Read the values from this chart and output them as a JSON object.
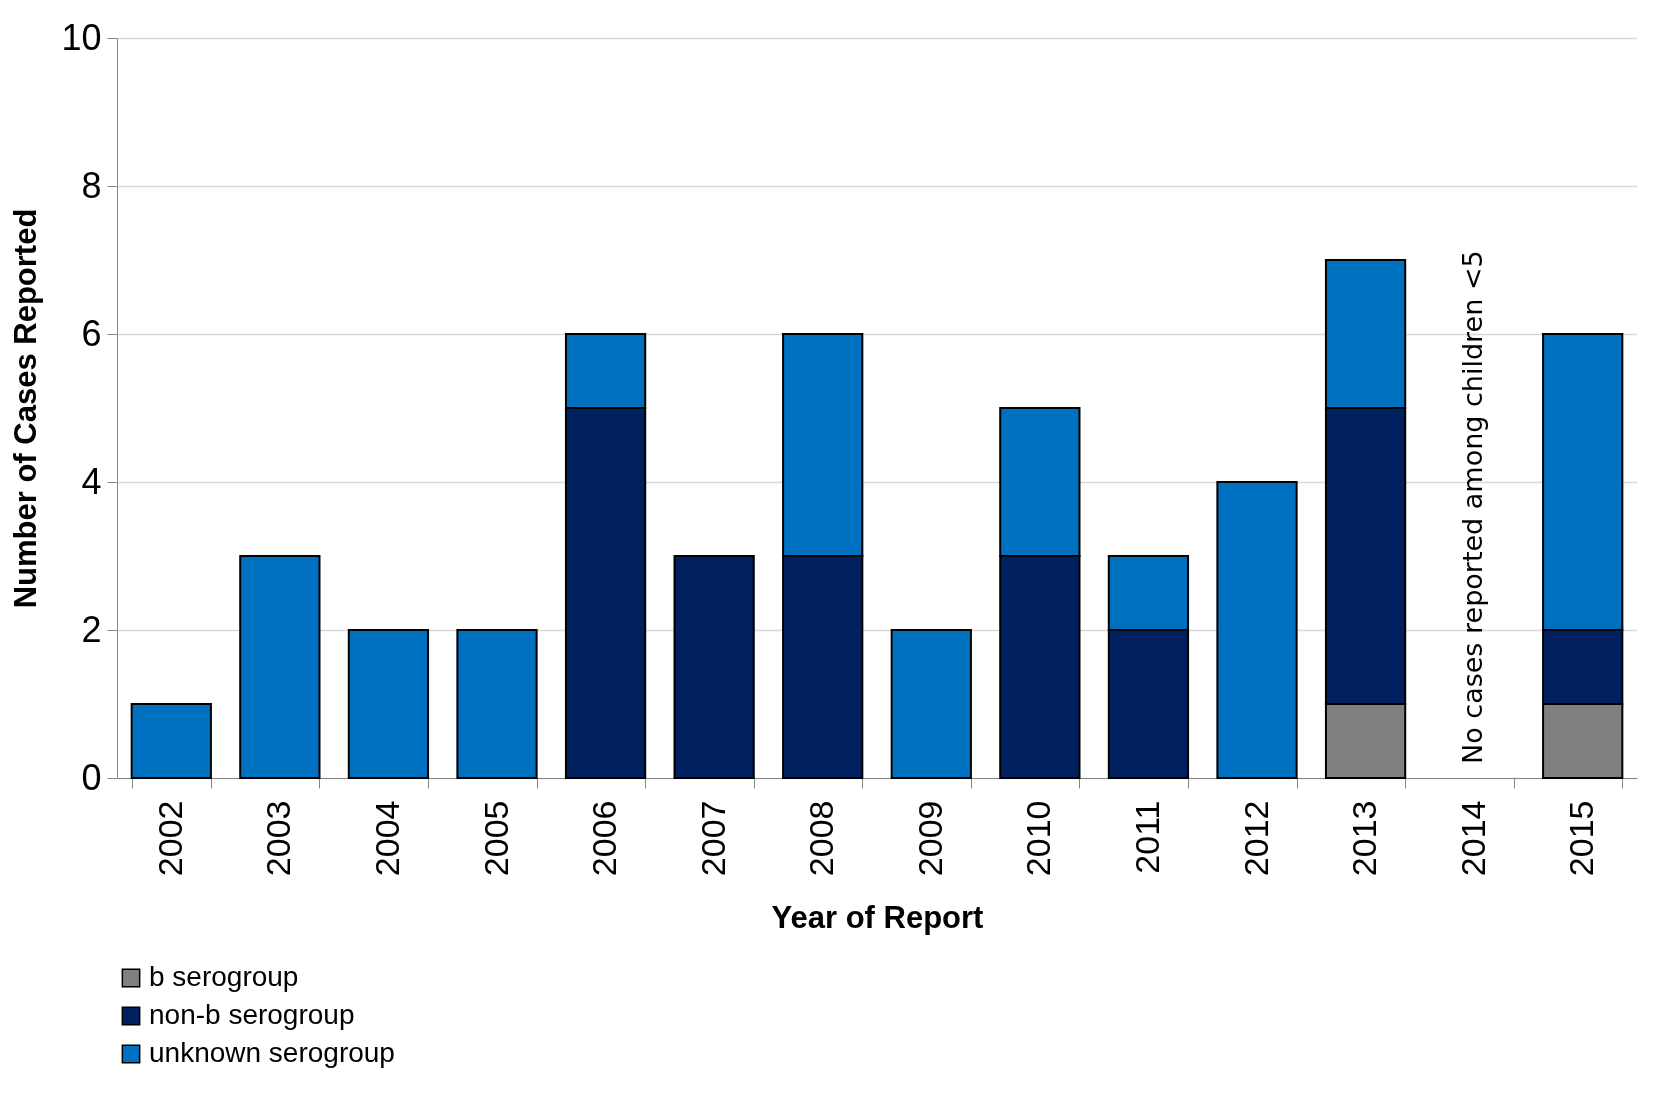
{
  "chart_data": {
    "type": "bar",
    "stacked": true,
    "xlabel": "Year of Report",
    "ylabel": "Number of Cases Reported",
    "categories": [
      "2002",
      "2003",
      "2004",
      "2005",
      "2006",
      "2007",
      "2008",
      "2009",
      "2010",
      "2011",
      "2012",
      "2013",
      "2014",
      "2015"
    ],
    "series": [
      {
        "name": "b serogroup",
        "color": "#808080",
        "values": [
          0,
          0,
          0,
          0,
          0,
          0,
          0,
          0,
          0,
          0,
          0,
          1,
          0,
          1
        ]
      },
      {
        "name": "non-b serogroup",
        "color": "#002060",
        "values": [
          0,
          0,
          0,
          0,
          5,
          3,
          3,
          0,
          3,
          2,
          0,
          4,
          0,
          1
        ]
      },
      {
        "name": "unknown serogroup",
        "color": "#0070c0",
        "values": [
          1,
          3,
          2,
          2,
          1,
          0,
          3,
          2,
          2,
          1,
          4,
          2,
          0,
          4
        ]
      }
    ],
    "ylim": [
      0,
      10
    ],
    "yticks": [
      0,
      2,
      4,
      6,
      8,
      10
    ],
    "grid": "y",
    "legend": "bottom left",
    "annotations": [
      {
        "text": "No cases reported among children <5",
        "x": "2014",
        "y": 0
      }
    ]
  }
}
